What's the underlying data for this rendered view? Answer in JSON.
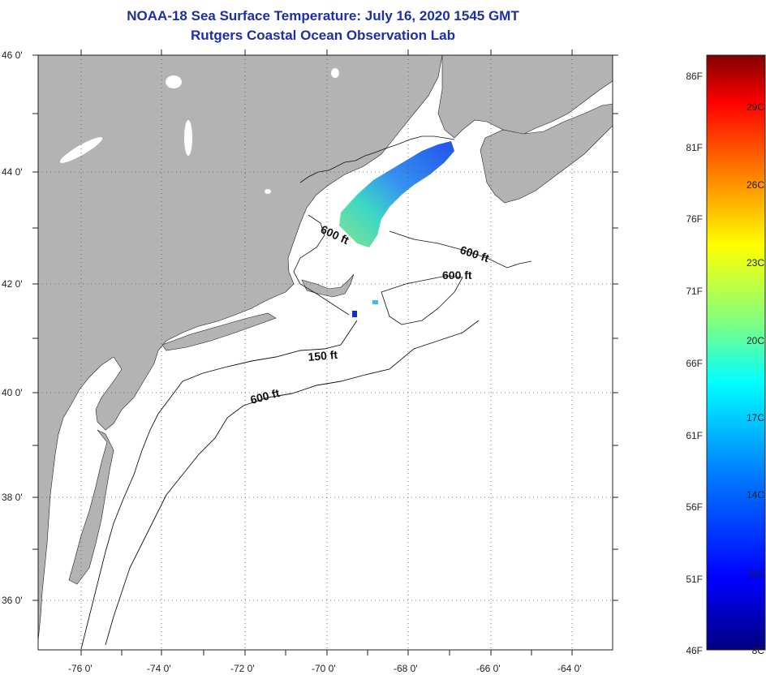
{
  "header": {
    "title": "NOAA-18 Sea Surface Temperature:  July 16, 2020 1545 GMT",
    "subtitle": "Rutgers Coastal Ocean Observation Lab"
  },
  "map": {
    "lat_labels": [
      "46 0'",
      "44 0'",
      "42 0'",
      "40 0'",
      "38 0'",
      "36 0'"
    ],
    "lon_labels": [
      "-76 0'",
      "-74 0'",
      "-72 0'",
      "-70 0'",
      "-68 0'",
      "-66 0'",
      "-64 0'"
    ],
    "contour_labels": [
      "600 ft",
      "600 ft",
      "600 ft",
      "150 ft",
      "600 ft"
    ],
    "colors": {
      "land": "#b3b3b3",
      "ocean": "#ffffff",
      "grid": "#555555",
      "title": "#1c2fa8"
    }
  },
  "colorbar": {
    "fahrenheit_labels": [
      "86F",
      "81F",
      "76F",
      "71F",
      "66F",
      "61F",
      "56F",
      "51F",
      "46F"
    ],
    "celsius_labels": [
      "29C",
      "26C",
      "23C",
      "20C",
      "17C",
      "14C",
      "11C",
      "8C"
    ],
    "gradient_stops": [
      "#000080",
      "#0000ff",
      "#0080ff",
      "#00ffff",
      "#80ff80",
      "#ffff00",
      "#ff8000",
      "#ff0000",
      "#800000"
    ]
  }
}
